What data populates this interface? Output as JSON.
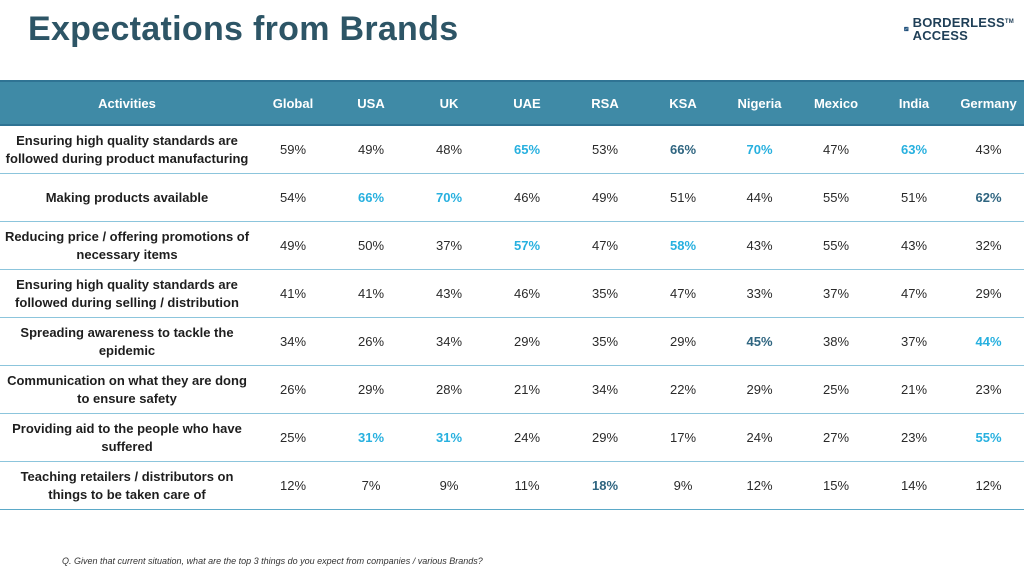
{
  "title": "Expectations from Brands",
  "logo": {
    "line1": "BORDERLESS",
    "tm": "TM",
    "line2": "ACCESS"
  },
  "table": {
    "headers": [
      "Activities",
      "Global",
      "USA",
      "UK",
      "UAE",
      "RSA",
      "KSA",
      "Nigeria",
      "Mexico",
      "India",
      "Germany"
    ],
    "rows": [
      {
        "activity": "Ensuring high quality standards are followed during product manufacturing",
        "values": [
          "59%",
          "49%",
          "48%",
          "65%",
          "53%",
          "66%",
          "70%",
          "47%",
          "63%",
          "43%"
        ],
        "highlight": [
          "",
          "",
          "",
          "cyan",
          "",
          "teal",
          "cyan",
          "",
          "cyan",
          ""
        ]
      },
      {
        "activity": "Making products available",
        "values": [
          "54%",
          "66%",
          "70%",
          "46%",
          "49%",
          "51%",
          "44%",
          "55%",
          "51%",
          "62%"
        ],
        "highlight": [
          "",
          "cyan",
          "cyan",
          "",
          "",
          "",
          "",
          "",
          "",
          "teal"
        ]
      },
      {
        "activity": "Reducing price / offering promotions of necessary items",
        "values": [
          "49%",
          "50%",
          "37%",
          "57%",
          "47%",
          "58%",
          "43%",
          "55%",
          "43%",
          "32%"
        ],
        "highlight": [
          "",
          "",
          "",
          "cyan",
          "",
          "cyan",
          "",
          "",
          "",
          ""
        ]
      },
      {
        "activity": "Ensuring high quality standards are followed during selling / distribution",
        "values": [
          "41%",
          "41%",
          "43%",
          "46%",
          "35%",
          "47%",
          "33%",
          "37%",
          "47%",
          "29%"
        ],
        "highlight": [
          "",
          "",
          "",
          "",
          "",
          "",
          "",
          "",
          "",
          ""
        ]
      },
      {
        "activity": "Spreading awareness to tackle the epidemic",
        "values": [
          "34%",
          "26%",
          "34%",
          "29%",
          "35%",
          "29%",
          "45%",
          "38%",
          "37%",
          "44%"
        ],
        "highlight": [
          "",
          "",
          "",
          "",
          "",
          "",
          "teal",
          "",
          "",
          "cyan"
        ]
      },
      {
        "activity": "Communication on what they are dong to ensure safety",
        "values": [
          "26%",
          "29%",
          "28%",
          "21%",
          "34%",
          "22%",
          "29%",
          "25%",
          "21%",
          "23%"
        ],
        "highlight": [
          "",
          "",
          "",
          "",
          "",
          "",
          "",
          "",
          "",
          ""
        ]
      },
      {
        "activity": "Providing aid to the people who have suffered",
        "values": [
          "25%",
          "31%",
          "31%",
          "24%",
          "29%",
          "17%",
          "24%",
          "27%",
          "23%",
          "55%"
        ],
        "highlight": [
          "",
          "cyan",
          "cyan",
          "",
          "",
          "",
          "",
          "",
          "",
          "cyan"
        ]
      },
      {
        "activity": "Teaching retailers / distributors on things to be taken care of",
        "values": [
          "12%",
          "7%",
          "9%",
          "11%",
          "18%",
          "9%",
          "12%",
          "15%",
          "14%",
          "12%"
        ],
        "highlight": [
          "",
          "",
          "",
          "",
          "teal",
          "",
          "",
          "",
          "",
          ""
        ]
      }
    ]
  },
  "footnote": "Q. Given that current situation, what are the top 3 things do you expect from companies / various Brands?",
  "colors": {
    "header_bg": "#3f8aa6",
    "title": "#2d5566",
    "highlight_cyan": "#27b0df",
    "highlight_teal": "#2f6580"
  }
}
